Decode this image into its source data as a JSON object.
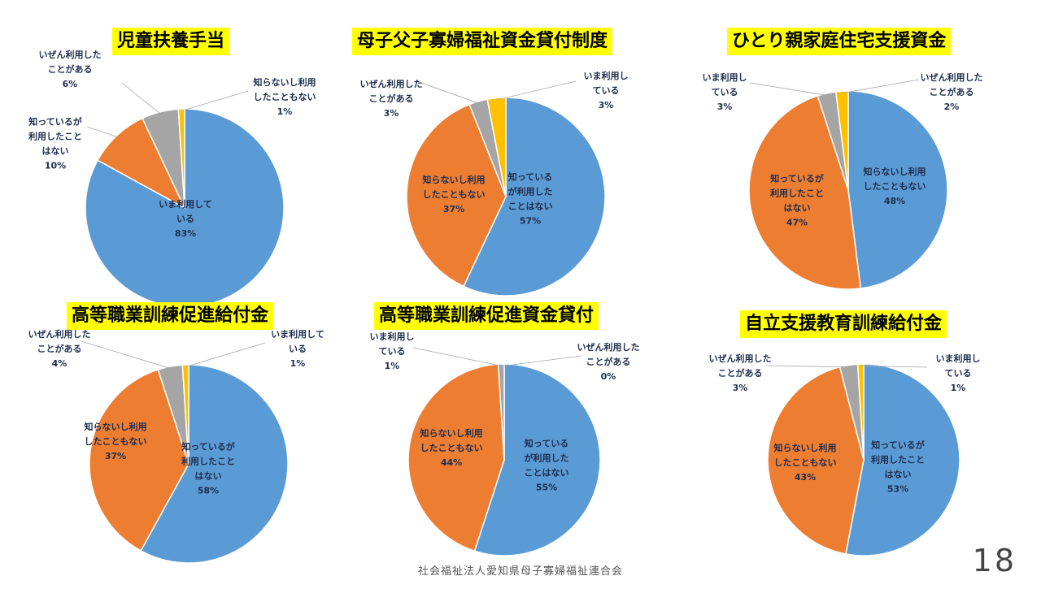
{
  "colors": {
    "いま利用している": "#5b9bd5",
    "知っているが利用したことはない": "#ed7d31",
    "知らないし利用したこともない": "#a5a5a5",
    "いぜん利用したことがある": "#ffc000",
    "title_bg": "#ffff00"
  },
  "chart_data": [
    {
      "type": "pie",
      "title": "児童扶養手当",
      "slices": [
        {
          "label": "いま利用して\nいる",
          "value": 83,
          "pct": "83%",
          "color": "#5b9bd5"
        },
        {
          "label": "知っているが\n利用したこと\nはない",
          "value": 10,
          "pct": "10%",
          "color": "#ed7d31"
        },
        {
          "label": "いぜん利用した\nことがある",
          "value": 6,
          "pct": "6%",
          "color": "#a5a5a5"
        },
        {
          "label": "知らないし利用\nしたこともない",
          "value": 1,
          "pct": "1%",
          "color": "#ffc000"
        }
      ]
    },
    {
      "type": "pie",
      "title": "母子父子寡婦福祉資金貸付制度",
      "slices": [
        {
          "label": "知っている\nが利用した\nことはない",
          "value": 57,
          "pct": "57%",
          "color": "#5b9bd5"
        },
        {
          "label": "知らないし利用\nしたこともない",
          "value": 37,
          "pct": "37%",
          "color": "#ed7d31"
        },
        {
          "label": "いぜん利用した\nことがある",
          "value": 3,
          "pct": "3%",
          "color": "#a5a5a5"
        },
        {
          "label": "いま利用し\nている",
          "value": 3,
          "pct": "3%",
          "color": "#ffc000"
        }
      ]
    },
    {
      "type": "pie",
      "title": "ひとり親家庭住宅支援資金",
      "slices": [
        {
          "label": "知らないし利用\nしたこともない",
          "value": 48,
          "pct": "48%",
          "color": "#5b9bd5"
        },
        {
          "label": "知っているが\n利用したこと\nはない",
          "value": 47,
          "pct": "47%",
          "color": "#ed7d31"
        },
        {
          "label": "いま利用し\nている",
          "value": 3,
          "pct": "3%",
          "color": "#a5a5a5"
        },
        {
          "label": "いぜん利用した\nことがある",
          "value": 2,
          "pct": "2%",
          "color": "#ffc000"
        }
      ]
    },
    {
      "type": "pie",
      "title": "高等職業訓練促進給付金",
      "slices": [
        {
          "label": "知っているが\n利用したこと\nはない",
          "value": 58,
          "pct": "58%",
          "color": "#5b9bd5"
        },
        {
          "label": "知らないし利用\nしたこともない",
          "value": 37,
          "pct": "37%",
          "color": "#ed7d31"
        },
        {
          "label": "いぜん利用した\nことがある",
          "value": 4,
          "pct": "4%",
          "color": "#a5a5a5"
        },
        {
          "label": "いま利用して\nいる",
          "value": 1,
          "pct": "1%",
          "color": "#ffc000"
        }
      ]
    },
    {
      "type": "pie",
      "title": "高等職業訓練促進資金貸付",
      "slices": [
        {
          "label": "知っている\nが利用した\nことはない",
          "value": 55,
          "pct": "55%",
          "color": "#5b9bd5"
        },
        {
          "label": "知らないし利用\nしたこともない",
          "value": 44,
          "pct": "44%",
          "color": "#ed7d31"
        },
        {
          "label": "いま利用し\nている",
          "value": 1,
          "pct": "1%",
          "color": "#a5a5a5"
        },
        {
          "label": "いぜん利用した\nことがある",
          "value": 0,
          "pct": "0%",
          "color": "#ffc000"
        }
      ]
    },
    {
      "type": "pie",
      "title": "自立支援教育訓練給付金",
      "slices": [
        {
          "label": "知っているが\n利用したこと\nはない",
          "value": 53,
          "pct": "53%",
          "color": "#5b9bd5"
        },
        {
          "label": "知らないし利用\nしたこともない",
          "value": 43,
          "pct": "43%",
          "color": "#ed7d31"
        },
        {
          "label": "いぜん利用した\nことがある",
          "value": 3,
          "pct": "3%",
          "color": "#a5a5a5"
        },
        {
          "label": "いま利用し\nている",
          "value": 1,
          "pct": "1%",
          "color": "#ffc000"
        }
      ]
    }
  ],
  "footer": "社会福祉法人愛知県母子寡婦福祉連合会",
  "page_number": "18"
}
